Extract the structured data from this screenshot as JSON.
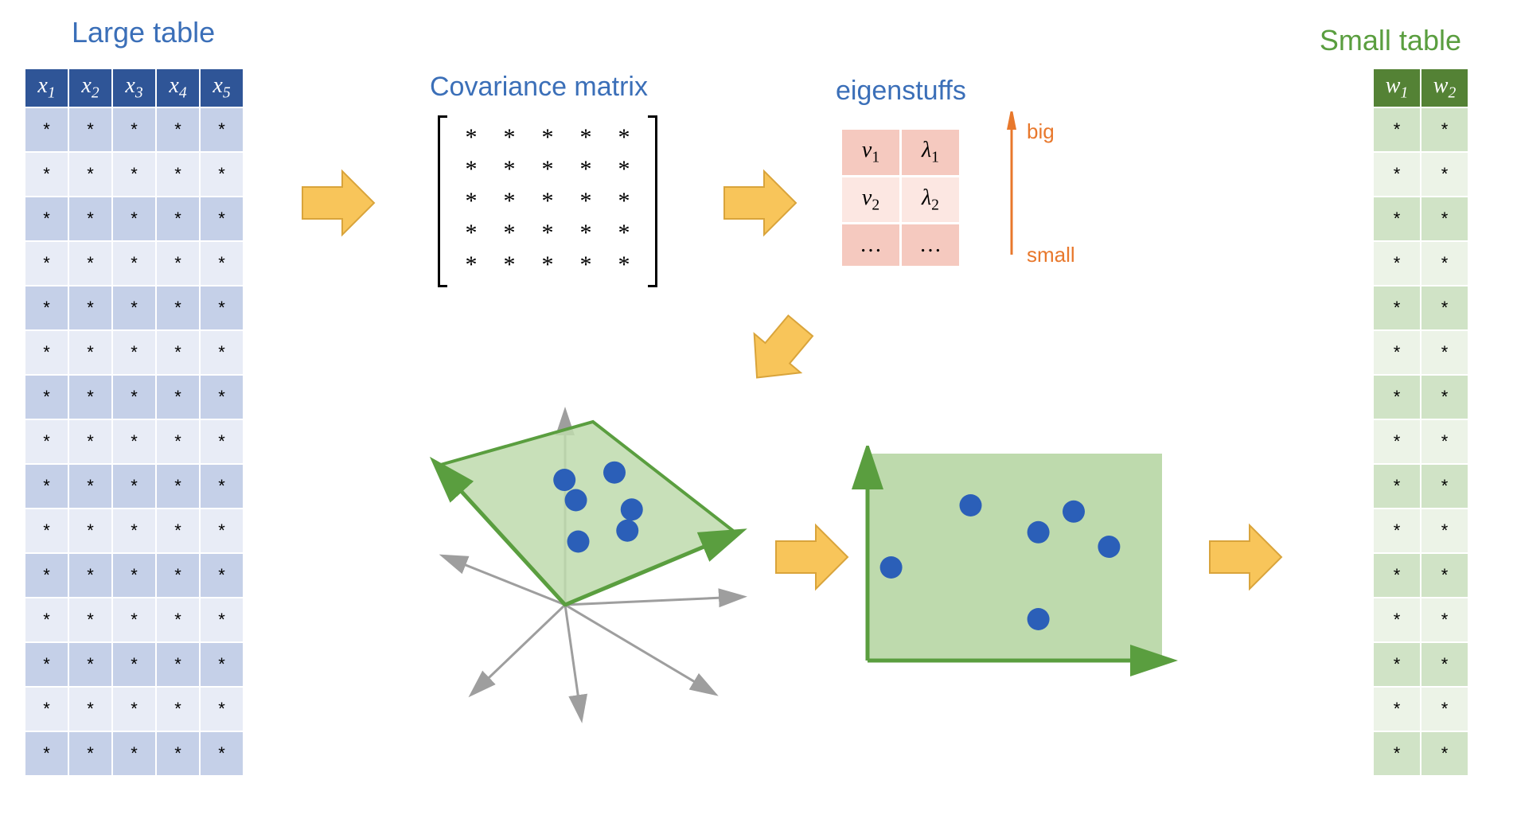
{
  "titles": {
    "large": "Large table",
    "cov": "Covariance matrix",
    "eig": "eigenstuffs",
    "small": "Small table"
  },
  "large_table": {
    "headers": [
      "x_1",
      "x_2",
      "x_3",
      "x_4",
      "x_5"
    ],
    "rows": 15,
    "cols": 5,
    "cell": "*",
    "header_bg": "#2f5597",
    "header_fg": "#ffffff",
    "row_odd_bg": "#c5d0e8",
    "row_even_bg": "#e8ecf6"
  },
  "small_table": {
    "headers": [
      "w_1",
      "w_2"
    ],
    "rows": 15,
    "cols": 2,
    "cell": "*",
    "header_bg": "#548235",
    "header_fg": "#ffffff",
    "row_odd_bg": "#d0e3c6",
    "row_even_bg": "#ecf3e7"
  },
  "cov_matrix": {
    "rows": 5,
    "cols": 5,
    "cell": "*",
    "bracket_color": "#000000"
  },
  "eigen": {
    "rows": [
      {
        "v": "v_1",
        "l": "λ_1",
        "bg": "#f5c9bf"
      },
      {
        "v": "v_2",
        "l": "λ_2",
        "bg": "#fce7e2"
      },
      {
        "v": "…",
        "l": "…",
        "bg": "#f5c9bf"
      }
    ],
    "arrow_color": "#e8782c",
    "label_big": "big",
    "label_small": "small"
  },
  "arrows": {
    "fill": "#f8c55a",
    "stroke": "#d9a43b"
  },
  "proj3d": {
    "plane_fill": "#bedaad",
    "plane_stroke": "#5a9e3f",
    "axis_color": "#9e9e9e",
    "green_axis_color": "#5a9e3f",
    "point_color": "#2b5fb8",
    "points": [
      {
        "x": 0.3,
        "y": 0.3
      },
      {
        "x": 0.45,
        "y": 0.52
      },
      {
        "x": 0.55,
        "y": 0.25
      },
      {
        "x": 0.65,
        "y": 0.35
      },
      {
        "x": 0.48,
        "y": 0.65
      },
      {
        "x": 0.72,
        "y": 0.58
      }
    ]
  },
  "proj2d": {
    "plane_fill": "#bedaad",
    "axis_color": "#5a9e3f",
    "point_color": "#2b5fb8",
    "points": [
      {
        "x": 0.08,
        "y": 0.55
      },
      {
        "x": 0.35,
        "y": 0.25
      },
      {
        "x": 0.58,
        "y": 0.38
      },
      {
        "x": 0.7,
        "y": 0.28
      },
      {
        "x": 0.82,
        "y": 0.45
      },
      {
        "x": 0.58,
        "y": 0.8
      }
    ]
  },
  "colors": {
    "title_blue": "#3b6fb8",
    "title_green": "#5a9e3f"
  }
}
